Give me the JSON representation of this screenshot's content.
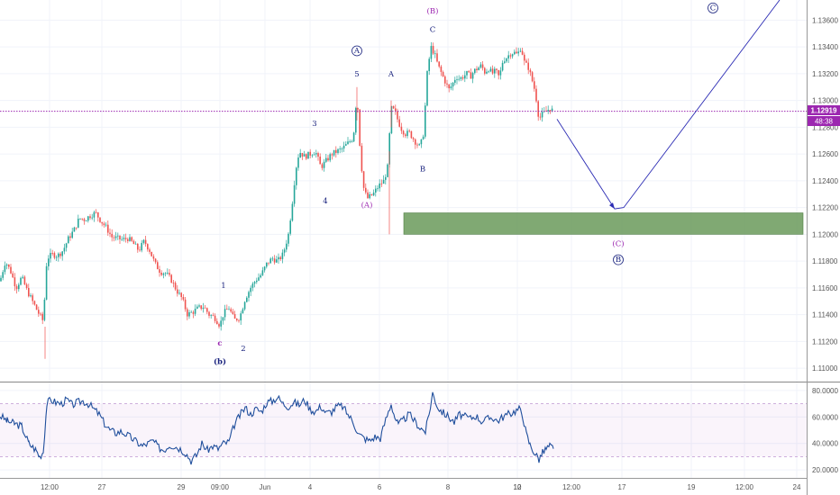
{
  "chart_data": [
    {
      "type": "candlestick",
      "price_axis": {
        "ticks": [
          "1.13600",
          "1.13400",
          "1.13200",
          "1.13000",
          "1.12800",
          "1.12600",
          "1.12400",
          "1.12200",
          "1.12000",
          "1.11800",
          "1.11600",
          "1.11400",
          "1.11200",
          "1.11000"
        ],
        "range": [
          1.109,
          1.1375
        ]
      },
      "time_axis": {
        "ticks": [
          "12:00",
          "27",
          "29",
          "09:00",
          "Jun",
          "4",
          "6",
          "8",
          "10",
          "12",
          "12:00",
          "17",
          "19",
          "12:00",
          "24"
        ]
      },
      "current_price": {
        "label": "1.12919",
        "value": 1.12919,
        "color": "#9c27b0"
      },
      "countdown": "48:38",
      "price_path": [
        [
          0,
          1.1165
        ],
        [
          6,
          1.118
        ],
        [
          12,
          1.1172
        ],
        [
          18,
          1.116
        ],
        [
          24,
          1.1168
        ],
        [
          30,
          1.1158
        ],
        [
          36,
          1.115
        ],
        [
          42,
          1.1142
        ],
        [
          48,
          1.1135
        ],
        [
          52,
          1.1182
        ],
        [
          58,
          1.1185
        ],
        [
          64,
          1.1184
        ],
        [
          70,
          1.1188
        ],
        [
          76,
          1.1197
        ],
        [
          82,
          1.1203
        ],
        [
          88,
          1.1212
        ],
        [
          94,
          1.1211
        ],
        [
          100,
          1.1214
        ],
        [
          106,
          1.1216
        ],
        [
          112,
          1.121
        ],
        [
          118,
          1.1205
        ],
        [
          124,
          1.1198
        ],
        [
          130,
          1.1197
        ],
        [
          136,
          1.1196
        ],
        [
          142,
          1.1197
        ],
        [
          148,
          1.1193
        ],
        [
          154,
          1.1188
        ],
        [
          160,
          1.1195
        ],
        [
          166,
          1.1188
        ],
        [
          172,
          1.1178
        ],
        [
          178,
          1.1172
        ],
        [
          184,
          1.1171
        ],
        [
          190,
          1.1166
        ],
        [
          196,
          1.1158
        ],
        [
          202,
          1.1152
        ],
        [
          208,
          1.114
        ],
        [
          214,
          1.1142
        ],
        [
          220,
          1.1145
        ],
        [
          226,
          1.1146
        ],
        [
          232,
          1.114
        ],
        [
          238,
          1.1138
        ],
        [
          244,
          1.1132
        ],
        [
          248,
          1.1141
        ],
        [
          254,
          1.1145
        ],
        [
          260,
          1.1136
        ],
        [
          266,
          1.1138
        ],
        [
          272,
          1.1152
        ],
        [
          278,
          1.116
        ],
        [
          284,
          1.1166
        ],
        [
          290,
          1.117
        ],
        [
          296,
          1.1178
        ],
        [
          302,
          1.1182
        ],
        [
          308,
          1.118
        ],
        [
          314,
          1.1185
        ],
        [
          320,
          1.12
        ],
        [
          324,
          1.1222
        ],
        [
          328,
          1.1248
        ],
        [
          332,
          1.1262
        ],
        [
          338,
          1.1258
        ],
        [
          344,
          1.126
        ],
        [
          350,
          1.1262
        ],
        [
          356,
          1.125
        ],
        [
          362,
          1.1255
        ],
        [
          368,
          1.126
        ],
        [
          374,
          1.1262
        ],
        [
          380,
          1.1264
        ],
        [
          386,
          1.1268
        ],
        [
          392,
          1.1272
        ],
        [
          396,
          1.1306
        ],
        [
          400,
          1.1258
        ],
        [
          404,
          1.1232
        ],
        [
          408,
          1.1227
        ],
        [
          414,
          1.123
        ],
        [
          420,
          1.1236
        ],
        [
          426,
          1.124
        ],
        [
          430,
          1.125
        ],
        [
          434,
          1.1294
        ],
        [
          438,
          1.1292
        ],
        [
          442,
          1.1284
        ],
        [
          446,
          1.1278
        ],
        [
          450,
          1.1275
        ],
        [
          454,
          1.1276
        ],
        [
          458,
          1.1272
        ],
        [
          462,
          1.1268
        ],
        [
          466,
          1.1265
        ],
        [
          470,
          1.1276
        ],
        [
          474,
          1.132
        ],
        [
          478,
          1.134
        ],
        [
          482,
          1.1335
        ],
        [
          486,
          1.1326
        ],
        [
          490,
          1.132
        ],
        [
          494,
          1.1314
        ],
        [
          498,
          1.1308
        ],
        [
          502,
          1.1312
        ],
        [
          506,
          1.1318
        ],
        [
          510,
          1.1316
        ],
        [
          514,
          1.1318
        ],
        [
          518,
          1.132
        ],
        [
          522,
          1.1318
        ],
        [
          526,
          1.1322
        ],
        [
          530,
          1.1324
        ],
        [
          534,
          1.1326
        ],
        [
          538,
          1.1321
        ],
        [
          542,
          1.1324
        ],
        [
          546,
          1.132
        ],
        [
          550,
          1.1322
        ],
        [
          554,
          1.1317
        ],
        [
          558,
          1.133
        ],
        [
          562,
          1.1332
        ],
        [
          566,
          1.1335
        ],
        [
          570,
          1.1336
        ],
        [
          574,
          1.1334
        ],
        [
          578,
          1.134
        ],
        [
          582,
          1.1328
        ],
        [
          586,
          1.1325
        ],
        [
          590,
          1.1316
        ],
        [
          594,
          1.1306
        ],
        [
          598,
          1.1286
        ],
        [
          602,
          1.129
        ],
        [
          606,
          1.1292
        ],
        [
          610,
          1.1294
        ],
        [
          614,
          1.1292
        ]
      ],
      "zone": {
        "from_price": 1.12,
        "to_price": 1.1216,
        "color": "#6a9a5b"
      },
      "projection": [
        [
          618,
          1.1286
        ],
        [
          682,
          1.1219
        ],
        [
          692,
          1.122
        ],
        [
          865,
          1.1375
        ]
      ],
      "wave_labels": [
        {
          "text": "c",
          "at": [
            244,
            1.1117
          ],
          "color": "#9c27b0",
          "bold": true
        },
        {
          "text": "(b)",
          "at": [
            244,
            1.1103
          ],
          "color": "#1a237e",
          "bold": true
        },
        {
          "text": "1",
          "at": [
            248,
            1.116
          ],
          "color": "#1a237e"
        },
        {
          "text": "2",
          "at": [
            270,
            1.1113
          ],
          "color": "#1a237e"
        },
        {
          "text": "3",
          "at": [
            349,
            1.1281
          ],
          "color": "#1a237e"
        },
        {
          "text": "4",
          "at": [
            361,
            1.1223
          ],
          "color": "#1a237e"
        },
        {
          "text": "5",
          "at": [
            396,
            1.1318
          ],
          "color": "#1a237e"
        },
        {
          "text": "A",
          "at": [
            396,
            1.1335
          ],
          "color": "#1a237e",
          "circled": true
        },
        {
          "text": "(A)",
          "at": [
            407,
            1.122
          ],
          "color": "#9c27b0"
        },
        {
          "text": "A",
          "at": [
            434,
            1.1318
          ],
          "color": "#1a237e"
        },
        {
          "text": "B",
          "at": [
            469,
            1.1247
          ],
          "color": "#1a237e"
        },
        {
          "text": "C",
          "at": [
            480,
            1.1351
          ],
          "color": "#1a237e"
        },
        {
          "text": "(B)",
          "at": [
            480,
            1.1365
          ],
          "color": "#9c27b0"
        },
        {
          "text": "(C)",
          "at": [
            686,
            1.1191
          ],
          "color": "#9c27b0"
        },
        {
          "text": "B",
          "at": [
            686,
            1.1179
          ],
          "color": "#1a237e",
          "circled": true
        },
        {
          "text": "C",
          "at": [
            791,
            1.1367
          ],
          "color": "#1a237e",
          "circled": true
        }
      ]
    },
    {
      "type": "line",
      "indicator": "oscillator",
      "ticks": [
        "80.0000",
        "60.0000",
        "40.0000",
        "20.0000"
      ],
      "range": [
        14,
        86
      ],
      "bands": [
        70,
        30
      ],
      "series_color": "#1f4e9c",
      "x": [
        0,
        8,
        16,
        24,
        32,
        40,
        44,
        48,
        52,
        56,
        62,
        68,
        74,
        80,
        86,
        92,
        98,
        104,
        110,
        116,
        122,
        128,
        134,
        140,
        146,
        152,
        158,
        164,
        170,
        176,
        182,
        188,
        194,
        200,
        206,
        212,
        218,
        224,
        230,
        236,
        242,
        248,
        254,
        260,
        266,
        272,
        278,
        284,
        290,
        296,
        302,
        308,
        314,
        320,
        326,
        332,
        338,
        344,
        350,
        356,
        362,
        368,
        374,
        380,
        386,
        392,
        398,
        404,
        410,
        416,
        422,
        428,
        434,
        438,
        442,
        448,
        454,
        460,
        466,
        472,
        476,
        480,
        486,
        492,
        498,
        504,
        510,
        516,
        522,
        528,
        534,
        540,
        546,
        552,
        558,
        564,
        570,
        576,
        580,
        584,
        588,
        594,
        598,
        602,
        606,
        610,
        614
      ],
      "values": [
        61,
        57,
        55,
        53,
        40,
        35,
        30,
        34,
        70,
        73,
        71,
        70,
        73,
        69,
        71,
        72,
        70,
        66,
        62,
        55,
        50,
        48,
        49,
        47,
        44,
        41,
        38,
        40,
        42,
        37,
        35,
        39,
        38,
        36,
        33,
        27,
        31,
        40,
        35,
        38,
        36,
        40,
        41,
        54,
        61,
        67,
        62,
        66,
        64,
        71,
        72,
        75,
        70,
        68,
        71,
        69,
        73,
        66,
        64,
        68,
        63,
        64,
        68,
        68,
        62,
        56,
        47,
        44,
        42,
        45,
        44,
        58,
        70,
        60,
        54,
        58,
        62,
        57,
        52,
        49,
        62,
        78,
        67,
        63,
        60,
        56,
        62,
        60,
        59,
        61,
        57,
        58,
        60,
        57,
        60,
        62,
        64,
        66,
        61,
        47,
        39,
        32,
        28,
        33,
        36,
        38,
        36
      ]
    }
  ]
}
